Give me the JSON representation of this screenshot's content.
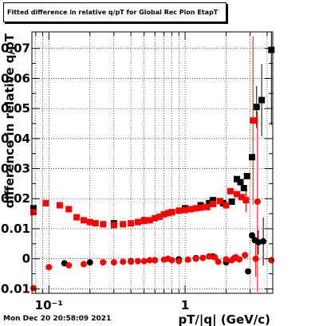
{
  "title": "Fitted difference in relative q/pT for Global Rec Pion EtapT",
  "timestamp": "Mon Dec 20 20:58:09 2021",
  "chart_data": {
    "type": "scatter",
    "title": "Fitted difference in relative q/pT for Global Rec Pion EtapT",
    "xlabel": "pT/|q| (GeV/c)",
    "ylabel": "difference in relative q/pT",
    "x_scale": "log",
    "xlim": [
      0.075,
      4.4
    ],
    "ylim": [
      -0.0115,
      0.0755
    ],
    "grid": true,
    "x_ticks": [
      {
        "value": 0.1,
        "label": "10⁻¹"
      },
      {
        "value": 1,
        "label": "1"
      }
    ],
    "y_ticks": [
      {
        "value": -0.01,
        "label": "-0.01"
      },
      {
        "value": 0,
        "label": "0"
      },
      {
        "value": 0.01,
        "label": "0.01"
      },
      {
        "value": 0.02,
        "label": "0.02"
      },
      {
        "value": 0.03,
        "label": "0.03"
      },
      {
        "value": 0.04,
        "label": "0.04"
      },
      {
        "value": 0.05,
        "label": "0.05"
      },
      {
        "value": 0.06,
        "label": "0.06"
      },
      {
        "value": 0.07,
        "label": "0.07"
      }
    ],
    "series": [
      {
        "color": "#000000",
        "points": [
          {
            "x": 0.077,
            "y": 0.0168,
            "marker": "square"
          },
          {
            "x": 0.3,
            "y": 0.0118,
            "marker": "square"
          },
          {
            "x": 0.5,
            "y": 0.0128,
            "marker": "square"
          },
          {
            "x": 0.8,
            "y": 0.0155,
            "marker": "square"
          },
          {
            "x": 1.0,
            "y": 0.0168,
            "marker": "square"
          },
          {
            "x": 1.3,
            "y": 0.0178,
            "marker": "square"
          },
          {
            "x": 1.5,
            "y": 0.0185,
            "marker": "square"
          },
          {
            "x": 1.6,
            "y": 0.0195,
            "marker": "square"
          },
          {
            "x": 1.9,
            "y": 0.0185,
            "marker": "square"
          },
          {
            "x": 2.2,
            "y": 0.019,
            "marker": "square"
          },
          {
            "x": 2.4,
            "y": 0.0265,
            "marker": "square"
          },
          {
            "x": 2.55,
            "y": 0.0255,
            "marker": "square"
          },
          {
            "x": 2.7,
            "y": 0.0235,
            "marker": "square"
          },
          {
            "x": 2.85,
            "y": 0.0275,
            "marker": "square"
          },
          {
            "x": 3.1,
            "y": 0.0338,
            "marker": "square"
          },
          {
            "x": 3.35,
            "y": 0.0505,
            "marker": "square",
            "err": 0.007
          },
          {
            "x": 3.65,
            "y": 0.0528,
            "marker": "square",
            "err": 0.012
          },
          {
            "x": 4.3,
            "y": 0.0695,
            "marker": "square",
            "err": 0.025
          },
          {
            "x": 0.13,
            "y": -0.0015,
            "marker": "circle"
          },
          {
            "x": 0.2,
            "y": -0.0012,
            "marker": "circle"
          },
          {
            "x": 0.4,
            "y": -0.0008,
            "marker": "circle"
          },
          {
            "x": 0.6,
            "y": -0.0005,
            "marker": "circle"
          },
          {
            "x": 0.9,
            "y": -0.0002,
            "marker": "circle"
          },
          {
            "x": 1.2,
            "y": 0.0002,
            "marker": "circle"
          },
          {
            "x": 1.6,
            "y": 0.0008,
            "marker": "circle"
          },
          {
            "x": 2.0,
            "y": -0.0012,
            "marker": "circle"
          },
          {
            "x": 2.3,
            "y": 0.0002,
            "marker": "circle"
          },
          {
            "x": 2.9,
            "y": -0.0042,
            "marker": "circle"
          },
          {
            "x": 3.1,
            "y": 0.0078,
            "marker": "circle"
          },
          {
            "x": 3.25,
            "y": 0.0062,
            "marker": "circle"
          },
          {
            "x": 3.45,
            "y": 0.0055,
            "marker": "circle",
            "err": 0.004
          },
          {
            "x": 3.75,
            "y": 0.0058,
            "marker": "circle",
            "err": 0.008
          }
        ]
      },
      {
        "color": "#ff0000",
        "points": [
          {
            "x": 0.077,
            "y": 0.0155,
            "marker": "square"
          },
          {
            "x": 0.095,
            "y": 0.0185,
            "marker": "square"
          },
          {
            "x": 0.12,
            "y": 0.0178,
            "marker": "square"
          },
          {
            "x": 0.14,
            "y": 0.0165,
            "marker": "square"
          },
          {
            "x": 0.16,
            "y": 0.0138,
            "marker": "square"
          },
          {
            "x": 0.18,
            "y": 0.0128,
            "marker": "square"
          },
          {
            "x": 0.2,
            "y": 0.0122,
            "marker": "square"
          },
          {
            "x": 0.22,
            "y": 0.0118,
            "marker": "square"
          },
          {
            "x": 0.25,
            "y": 0.0115,
            "marker": "square"
          },
          {
            "x": 0.3,
            "y": 0.0112,
            "marker": "square"
          },
          {
            "x": 0.35,
            "y": 0.0115,
            "marker": "square"
          },
          {
            "x": 0.4,
            "y": 0.0118,
            "marker": "square"
          },
          {
            "x": 0.45,
            "y": 0.0122,
            "marker": "square"
          },
          {
            "x": 0.5,
            "y": 0.0126,
            "marker": "square"
          },
          {
            "x": 0.55,
            "y": 0.0128,
            "marker": "square"
          },
          {
            "x": 0.6,
            "y": 0.0135,
            "marker": "square"
          },
          {
            "x": 0.65,
            "y": 0.014,
            "marker": "square"
          },
          {
            "x": 0.7,
            "y": 0.0148,
            "marker": "square"
          },
          {
            "x": 0.75,
            "y": 0.0152,
            "marker": "square"
          },
          {
            "x": 0.8,
            "y": 0.0155,
            "marker": "square"
          },
          {
            "x": 0.9,
            "y": 0.016,
            "marker": "square"
          },
          {
            "x": 1.0,
            "y": 0.0162,
            "marker": "square"
          },
          {
            "x": 1.1,
            "y": 0.0165,
            "marker": "square"
          },
          {
            "x": 1.2,
            "y": 0.0168,
            "marker": "square"
          },
          {
            "x": 1.3,
            "y": 0.017,
            "marker": "square"
          },
          {
            "x": 1.45,
            "y": 0.0172,
            "marker": "square"
          },
          {
            "x": 1.6,
            "y": 0.0182,
            "marker": "square"
          },
          {
            "x": 1.8,
            "y": 0.0192,
            "marker": "square"
          },
          {
            "x": 2.0,
            "y": 0.0178,
            "marker": "square"
          },
          {
            "x": 2.15,
            "y": 0.0225,
            "marker": "square"
          },
          {
            "x": 2.4,
            "y": 0.0215,
            "marker": "square"
          },
          {
            "x": 2.6,
            "y": 0.0205,
            "marker": "square"
          },
          {
            "x": 2.8,
            "y": 0.0195,
            "marker": "square",
            "err": 0.004
          },
          {
            "x": 3.15,
            "y": 0.046,
            "marker": "square",
            "err": 0.028
          },
          {
            "x": 0.077,
            "y": -0.0098,
            "marker": "circle"
          },
          {
            "x": 0.1,
            "y": -0.0028,
            "marker": "circle"
          },
          {
            "x": 0.14,
            "y": -0.0022,
            "marker": "circle"
          },
          {
            "x": 0.18,
            "y": -0.0018,
            "marker": "circle"
          },
          {
            "x": 0.25,
            "y": -0.0012,
            "marker": "circle"
          },
          {
            "x": 0.3,
            "y": -0.0012,
            "marker": "circle"
          },
          {
            "x": 0.35,
            "y": -0.001,
            "marker": "circle"
          },
          {
            "x": 0.4,
            "y": -0.001,
            "marker": "circle"
          },
          {
            "x": 0.45,
            "y": -0.0008,
            "marker": "circle"
          },
          {
            "x": 0.5,
            "y": -0.0008,
            "marker": "circle"
          },
          {
            "x": 0.55,
            "y": -0.0005,
            "marker": "circle"
          },
          {
            "x": 0.6,
            "y": -0.0005,
            "marker": "circle"
          },
          {
            "x": 0.7,
            "y": -0.0003,
            "marker": "circle"
          },
          {
            "x": 0.75,
            "y": 0.0,
            "marker": "circle"
          },
          {
            "x": 0.8,
            "y": -0.0005,
            "marker": "circle"
          },
          {
            "x": 0.9,
            "y": -0.0008,
            "marker": "circle"
          },
          {
            "x": 1.05,
            "y": -0.0003,
            "marker": "circle"
          },
          {
            "x": 1.2,
            "y": 0.0,
            "marker": "circle"
          },
          {
            "x": 1.35,
            "y": 0.0003,
            "marker": "circle"
          },
          {
            "x": 1.5,
            "y": 0.0008,
            "marker": "circle"
          },
          {
            "x": 1.65,
            "y": 0.0005,
            "marker": "circle"
          },
          {
            "x": 1.75,
            "y": -0.001,
            "marker": "circle"
          },
          {
            "x": 2.0,
            "y": -0.0002,
            "marker": "circle"
          },
          {
            "x": 2.2,
            "y": -0.0005,
            "marker": "circle"
          },
          {
            "x": 2.35,
            "y": 0.0005,
            "marker": "circle"
          },
          {
            "x": 2.5,
            "y": -0.0002,
            "marker": "circle"
          },
          {
            "x": 2.75,
            "y": 0.0012,
            "marker": "circle"
          },
          {
            "x": 3.3,
            "y": 0.0,
            "marker": "circle",
            "err": 0.006
          },
          {
            "x": 3.4,
            "y": 0.019,
            "marker": "circle",
            "err": 0.03
          },
          {
            "x": 4.3,
            "y": -0.0005,
            "marker": "circle"
          }
        ]
      }
    ]
  }
}
